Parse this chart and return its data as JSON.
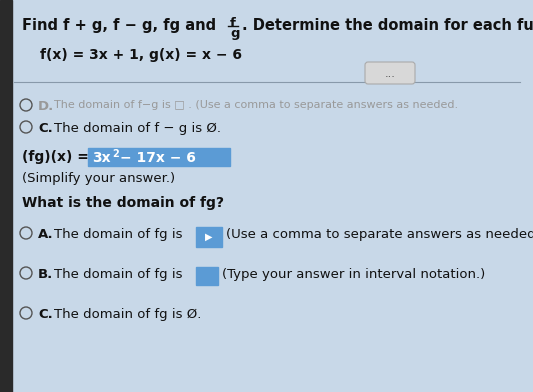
{
  "bg_color": "#c8d8e8",
  "left_bar_color": "#2a2a2a",
  "highlight_color": "#5b9bd5",
  "text_color": "#111111",
  "grey_text_color": "#999999",
  "circle_color": "#555555",
  "line_color": "#8899aa",
  "btn_color": "#d8d8d8",
  "btn_border": "#aaaaaa",
  "title_part1": "Find f + g, f − g, fg and",
  "title_frac_top": "f",
  "title_frac_bot": "g",
  "title_part2": ". Determine the domain for each function.",
  "given": "f(x) = 3x + 1, g(x) = x − 6",
  "optD_text": "The domain of f−g is □ . (Use a comma to separate answers as needed.",
  "optC_fg_text": "The domain of f − g is Ø.",
  "fg_prefix": "(fg)(x) = ",
  "fg_highlighted": "3x² − 17x − 6",
  "simplify": "(Simplify your answer.)",
  "domain_q": "What is the domain of fg?",
  "optA_text": "The domain of fg is",
  "optA_suffix": "(Use a comma to separate answers as needed.",
  "optB_text": "The domain of fg is",
  "optB_suffix": "(Type your answer in interval notation.)",
  "optC_text": "The domain of fg is Ø.",
  "fs_title": 10.5,
  "fs_body": 10,
  "fs_small": 9.5
}
